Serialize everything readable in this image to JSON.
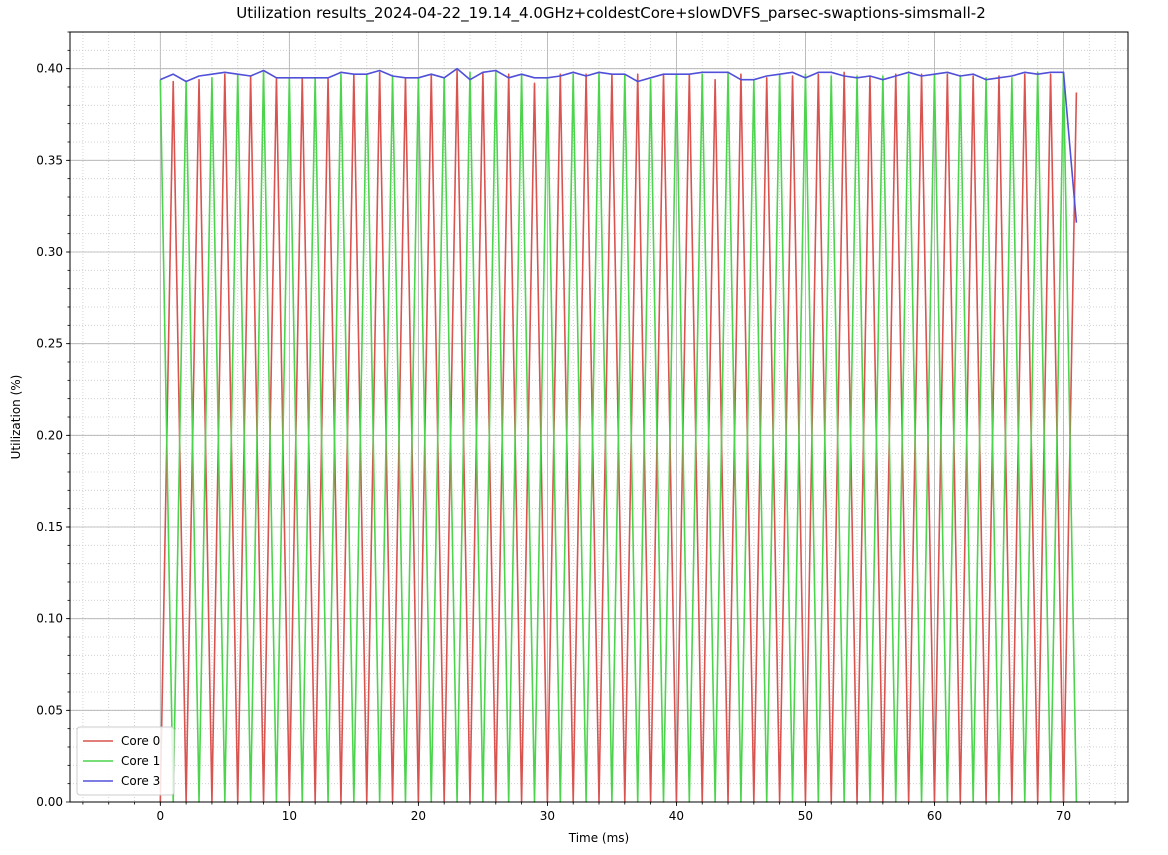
{
  "chart_data": {
    "type": "line",
    "title": "Utilization results_2024-04-22_19.14_4.0GHz+coldestCore+slowDVFS_parsec-swaptions-simsmall-2",
    "xlabel": "Time (ms)",
    "ylabel": "Utilization (%)",
    "xlim": [
      -7,
      75
    ],
    "ylim": [
      0,
      0.42
    ],
    "xticks": [
      0,
      10,
      20,
      30,
      40,
      50,
      60,
      70
    ],
    "yticks": [
      0.0,
      0.05,
      0.1,
      0.15,
      0.2,
      0.25,
      0.3,
      0.35,
      0.4
    ],
    "xtick_labels": [
      "0",
      "10",
      "20",
      "30",
      "40",
      "50",
      "60",
      "70"
    ],
    "ytick_labels": [
      "0.00",
      "0.05",
      "0.10",
      "0.15",
      "0.20",
      "0.25",
      "0.30",
      "0.35",
      "0.40"
    ],
    "grid": true,
    "minor_grid": true,
    "legend_position": "lower-left",
    "x": [
      0,
      1,
      2,
      3,
      4,
      5,
      6,
      7,
      8,
      9,
      10,
      11,
      12,
      13,
      14,
      15,
      16,
      17,
      18,
      19,
      20,
      21,
      22,
      23,
      24,
      25,
      26,
      27,
      28,
      29,
      30,
      31,
      32,
      33,
      34,
      35,
      36,
      37,
      38,
      39,
      40,
      41,
      42,
      43,
      44,
      45,
      46,
      47,
      48,
      49,
      50,
      51,
      52,
      53,
      54,
      55,
      56,
      57,
      58,
      59,
      60,
      61,
      62,
      63,
      64,
      65,
      66,
      67,
      68,
      69,
      70,
      71
    ],
    "series": [
      {
        "name": "Core 0",
        "color": "#d9534f",
        "values": [
          0,
          0.393,
          0,
          0.394,
          0,
          0.397,
          0,
          0.396,
          0,
          0.395,
          0,
          0.395,
          0,
          0.395,
          0,
          0.397,
          0,
          0.398,
          0,
          0.395,
          0,
          0.397,
          0,
          0.399,
          0,
          0.398,
          0,
          0.397,
          0,
          0.392,
          0,
          0.397,
          0,
          0.397,
          0,
          0.397,
          0,
          0.397,
          0,
          0.397,
          0,
          0.397,
          0,
          0.394,
          0,
          0.397,
          0,
          0.395,
          0,
          0.396,
          0,
          0.397,
          0,
          0.398,
          0,
          0.396,
          0,
          0.397,
          0,
          0.397,
          0,
          0.397,
          0,
          0.396,
          0,
          0.396,
          0,
          0.397,
          0,
          0.397,
          0,
          0.387
        ]
      },
      {
        "name": "Core 1",
        "color": "#4cd44c",
        "values": [
          0.394,
          0,
          0.393,
          0,
          0.395,
          0,
          0.397,
          0,
          0.399,
          0,
          0.395,
          0,
          0.395,
          0,
          0.397,
          0,
          0.397,
          0,
          0.396,
          0,
          0.395,
          0,
          0.395,
          0,
          0.398,
          0,
          0.399,
          0,
          0.397,
          0,
          0.395,
          0,
          0.397,
          0,
          0.398,
          0,
          0.397,
          0,
          0.394,
          0,
          0.397,
          0,
          0.397,
          0,
          0.398,
          0,
          0.394,
          0,
          0.397,
          0,
          0.397,
          0,
          0.396,
          0,
          0.396,
          0,
          0.396,
          0,
          0.397,
          0,
          0.397,
          0,
          0.396,
          0,
          0.395,
          0,
          0.395,
          0,
          0.398,
          0,
          0.398,
          0
        ]
      },
      {
        "name": "Core 3",
        "color": "#5050d8",
        "values": [
          0.394,
          0.397,
          0.393,
          0.396,
          0.397,
          0.398,
          0.397,
          0.396,
          0.399,
          0.395,
          0.395,
          0.395,
          0.395,
          0.395,
          0.398,
          0.397,
          0.397,
          0.399,
          0.396,
          0.395,
          0.395,
          0.397,
          0.395,
          0.4,
          0.394,
          0.398,
          0.399,
          0.395,
          0.397,
          0.395,
          0.395,
          0.396,
          0.398,
          0.396,
          0.398,
          0.397,
          0.397,
          0.393,
          0.395,
          0.397,
          0.397,
          0.397,
          0.398,
          0.398,
          0.398,
          0.394,
          0.394,
          0.396,
          0.397,
          0.398,
          0.395,
          0.398,
          0.398,
          0.396,
          0.395,
          0.396,
          0.394,
          0.396,
          0.398,
          0.396,
          0.397,
          0.398,
          0.396,
          0.397,
          0.394,
          0.395,
          0.396,
          0.398,
          0.397,
          0.398,
          0.398,
          0.316
        ]
      }
    ]
  }
}
